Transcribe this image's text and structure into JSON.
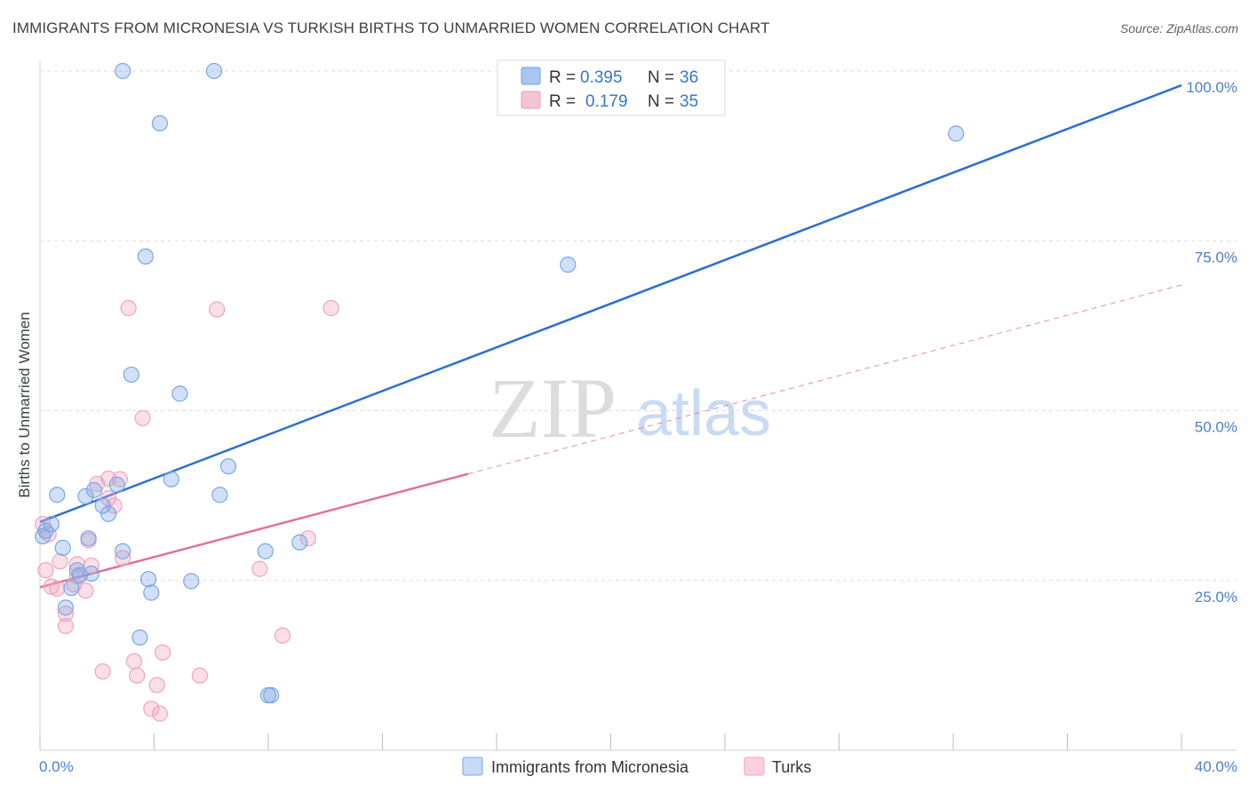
{
  "title": "IMMIGRANTS FROM MICRONESIA VS TURKISH BIRTHS TO UNMARRIED WOMEN CORRELATION CHART",
  "source": "Source: ZipAtlas.com",
  "watermark": {
    "zip": "ZIP",
    "atlas": "atlas"
  },
  "legend_top": [
    {
      "r_label": "R =",
      "r_value": "0.395",
      "n_label": "N =",
      "n_value": "36",
      "color": "#a8c6f0"
    },
    {
      "r_label": "R =",
      "r_value": "0.179",
      "n_label": "N =",
      "n_value": "35",
      "color": "#f5b8cb"
    }
  ],
  "chart_data": {
    "type": "scatter",
    "title": "IMMIGRANTS FROM MICRONESIA VS TURKISH BIRTHS TO UNMARRIED WOMEN CORRELATION CHART",
    "xlabel": "",
    "ylabel": "Births to Unmarried Women",
    "xlim": [
      0,
      40
    ],
    "ylim": [
      0,
      100
    ],
    "x_tick_labels": [
      "0.0%",
      "40.0%"
    ],
    "y_tick_values": [
      25,
      50,
      75,
      100
    ],
    "y_tick_labels": [
      "25.0%",
      "50.0%",
      "75.0%",
      "100.0%"
    ],
    "grid": true,
    "series": [
      {
        "name": "Immigrants from Micronesia",
        "color": "#7aa7e6",
        "line_color": "#2b6fd0",
        "trend": {
          "x": [
            0,
            40
          ],
          "y": [
            33.6,
            97.9
          ],
          "style": "solid"
        },
        "points": [
          [
            2.9,
            100
          ],
          [
            6.1,
            100
          ],
          [
            4.2,
            92.3
          ],
          [
            32.1,
            90.8
          ],
          [
            3.7,
            72.7
          ],
          [
            18.5,
            71.5
          ],
          [
            3.2,
            55.3
          ],
          [
            4.9,
            52.5
          ],
          [
            6.6,
            41.8
          ],
          [
            4.6,
            39.9
          ],
          [
            0.6,
            37.6
          ],
          [
            1.6,
            37.4
          ],
          [
            2.7,
            39.1
          ],
          [
            1.9,
            38.3
          ],
          [
            6.3,
            37.6
          ],
          [
            2.2,
            36.0
          ],
          [
            2.4,
            34.8
          ],
          [
            0.2,
            32.3
          ],
          [
            0.4,
            33.3
          ],
          [
            0.1,
            31.5
          ],
          [
            1.7,
            31.2
          ],
          [
            0.8,
            29.8
          ],
          [
            2.9,
            29.3
          ],
          [
            7.9,
            29.3
          ],
          [
            9.1,
            30.6
          ],
          [
            1.3,
            26.5
          ],
          [
            1.4,
            25.8
          ],
          [
            3.8,
            25.2
          ],
          [
            5.3,
            24.9
          ],
          [
            1.1,
            23.9
          ],
          [
            3.9,
            23.2
          ],
          [
            0.9,
            21.0
          ],
          [
            3.5,
            16.6
          ],
          [
            8.0,
            8.1
          ],
          [
            8.1,
            8.1
          ],
          [
            1.8,
            26.0
          ]
        ]
      },
      {
        "name": "Turks",
        "color": "#f2a3bc",
        "line_color": "#e0709a",
        "trend": {
          "x": [
            0,
            40
          ],
          "y": [
            24.0,
            68.5
          ],
          "solid_until": 15.0,
          "style": "solid-then-dashed"
        },
        "points": [
          [
            0.1,
            33.3
          ],
          [
            0.3,
            31.8
          ],
          [
            0.2,
            26.5
          ],
          [
            3.1,
            65.1
          ],
          [
            6.2,
            64.9
          ],
          [
            10.2,
            65.1
          ],
          [
            3.6,
            48.9
          ],
          [
            2.4,
            40.0
          ],
          [
            2.8,
            39.9
          ],
          [
            2.0,
            39.2
          ],
          [
            2.4,
            37.1
          ],
          [
            2.6,
            36.0
          ],
          [
            9.4,
            31.2
          ],
          [
            1.7,
            30.9
          ],
          [
            0.7,
            27.8
          ],
          [
            1.3,
            27.4
          ],
          [
            1.8,
            27.2
          ],
          [
            2.9,
            28.3
          ],
          [
            7.7,
            26.7
          ],
          [
            0.4,
            24.1
          ],
          [
            0.6,
            23.8
          ],
          [
            1.6,
            23.5
          ],
          [
            1.2,
            24.4
          ],
          [
            1.3,
            25.6
          ],
          [
            0.9,
            20.1
          ],
          [
            0.9,
            18.3
          ],
          [
            8.5,
            16.9
          ],
          [
            4.3,
            14.4
          ],
          [
            3.3,
            13.1
          ],
          [
            2.2,
            11.6
          ],
          [
            3.4,
            11.0
          ],
          [
            5.6,
            11.0
          ],
          [
            4.1,
            9.6
          ],
          [
            3.9,
            6.1
          ],
          [
            4.2,
            5.4
          ]
        ]
      }
    ]
  }
}
